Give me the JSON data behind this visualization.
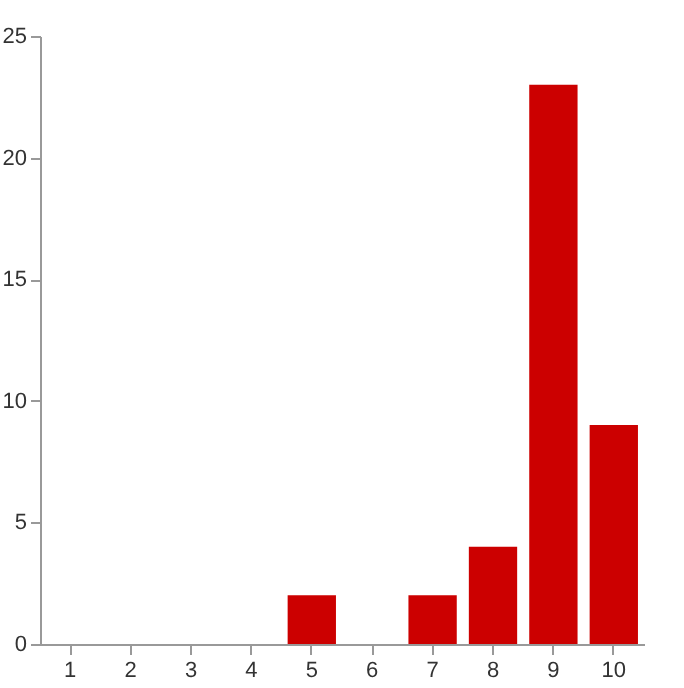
{
  "chart_data": {
    "type": "bar",
    "categories": [
      "1",
      "2",
      "3",
      "4",
      "5",
      "6",
      "7",
      "8",
      "9",
      "10"
    ],
    "values": [
      0,
      0,
      0,
      0,
      2,
      0,
      2,
      4,
      23,
      9
    ],
    "color": "#cc0000",
    "ylim": [
      0,
      25
    ],
    "yticks": [
      0,
      5,
      10,
      15,
      20,
      25
    ],
    "grid": false
  }
}
